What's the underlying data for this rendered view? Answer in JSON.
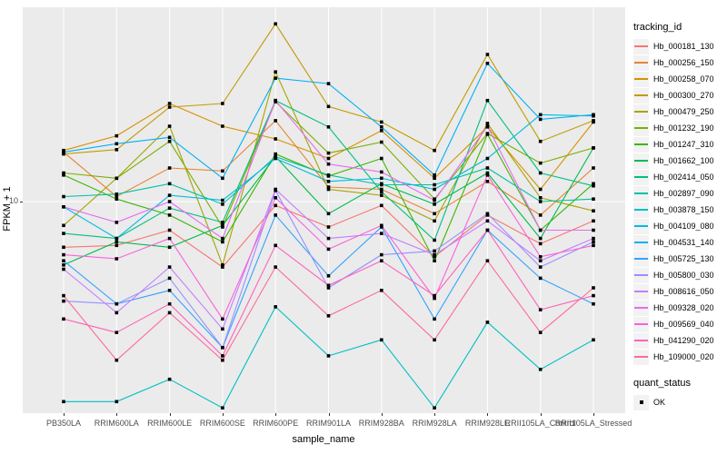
{
  "figure": {
    "panel_bg": "#EBEBEB",
    "grid_color": "#FFFFFF",
    "axis_text_color": "#4D4D4D",
    "point_color": "#000000"
  },
  "y_axis": {
    "title": "FPKM + 1",
    "tick_labels": [
      "10"
    ]
  },
  "x_axis": {
    "title": "sample_name"
  },
  "legend": {
    "tracking_title": "tracking_id",
    "quant_title": "quant_status",
    "quant_ok_label": "OK"
  },
  "chart_data": {
    "type": "line",
    "title": "",
    "xlabel": "sample_name",
    "ylabel": "FPKM + 1",
    "y_scale": "log10",
    "y_break_labeled": 10,
    "ylim": [
      1.9,
      45
    ],
    "grid": true,
    "legend_position": "right",
    "point_shape": "filled-black-square",
    "quant_status": "OK",
    "categories": [
      "PB350LA",
      "RRIM600LA",
      "RRIM600LE",
      "RRIM600SE",
      "RRIM600PE",
      "RRIM901LA",
      "RRIM928BA",
      "RRIM928LA",
      "RRIM928LE",
      "RRII105LA_Control",
      "RRII105LA_Stressed"
    ],
    "series": [
      {
        "name": "Hb_000181_130",
        "color": "#F8766D",
        "values": [
          7.0,
          7.1,
          8.0,
          6.0,
          9.7,
          8.2,
          9.7,
          6.5,
          9.0,
          7.2,
          8.6
        ]
      },
      {
        "name": "Hb_000256_150",
        "color": "#EA8331",
        "values": [
          14.7,
          10.4,
          13.0,
          12.7,
          18.8,
          11.2,
          11.0,
          9.1,
          11.7,
          9.0,
          13.0
        ]
      },
      {
        "name": "Hb_000258_070",
        "color": "#D89000",
        "values": [
          14.9,
          16.7,
          21.5,
          18.0,
          16.3,
          14.0,
          17.4,
          12.0,
          17.9,
          11.0,
          18.6
        ]
      },
      {
        "name": "Hb_000300_270",
        "color": "#C09B00",
        "values": [
          14.5,
          15.0,
          20.9,
          21.5,
          40.0,
          21.0,
          18.6,
          14.9,
          31.5,
          16.0,
          18.8
        ]
      },
      {
        "name": "Hb_000479_250",
        "color": "#A3A500",
        "values": [
          8.3,
          12.0,
          18.0,
          6.1,
          27.5,
          11.0,
          10.5,
          8.6,
          18.4,
          10.3,
          9.3
        ]
      },
      {
        "name": "Hb_001232_190",
        "color": "#7CAE00",
        "values": [
          12.5,
          12.0,
          16.0,
          8.2,
          21.8,
          14.6,
          15.9,
          10.2,
          17.0,
          13.5,
          15.2
        ]
      },
      {
        "name": "Hb_001247_310",
        "color": "#39B600",
        "values": [
          12.3,
          10.2,
          9.0,
          7.3,
          14.5,
          12.2,
          14.0,
          6.3,
          16.9,
          8.0,
          11.5
        ]
      },
      {
        "name": "Hb_001662_100",
        "color": "#00BB4E",
        "values": [
          6.1,
          7.3,
          7.0,
          8.3,
          14.2,
          9.1,
          11.5,
          9.8,
          12.5,
          7.5,
          15.2
        ]
      },
      {
        "name": "Hb_002414_050",
        "color": "#00BF7D",
        "values": [
          7.8,
          7.5,
          9.5,
          8.5,
          22.0,
          17.9,
          10.8,
          7.4,
          22.0,
          12.5,
          11.3
        ]
      },
      {
        "name": "Hb_002897_090",
        "color": "#00C1A3",
        "values": [
          10.4,
          10.6,
          11.5,
          9.8,
          14.2,
          12.3,
          11.4,
          11.4,
          13.0,
          10.0,
          10.2
        ]
      },
      {
        "name": "Hb_003878_150",
        "color": "#00BFC4",
        "values": [
          2.1,
          2.1,
          2.5,
          2.0,
          4.4,
          3.0,
          3.4,
          2.0,
          3.9,
          2.7,
          3.4
        ]
      },
      {
        "name": "Hb_004109_080",
        "color": "#00BAE0",
        "values": [
          9.6,
          7.5,
          10.5,
          10.1,
          14.0,
          11.7,
          12.0,
          11.0,
          14.0,
          19.7,
          19.5
        ]
      },
      {
        "name": "Hb_004531_140",
        "color": "#00B0F6",
        "values": [
          14.7,
          15.7,
          16.5,
          12.0,
          26.2,
          25.1,
          17.9,
          12.3,
          29.4,
          19.0,
          19.7
        ]
      },
      {
        "name": "Hb_005725_130",
        "color": "#35A2FF",
        "values": [
          6.3,
          4.5,
          5.0,
          3.2,
          9.0,
          5.6,
          8.2,
          4.0,
          8.0,
          5.5,
          4.5
        ]
      },
      {
        "name": "Hb_005800_030",
        "color": "#9590FF",
        "values": [
          4.6,
          4.5,
          5.5,
          3.2,
          10.9,
          5.1,
          6.6,
          6.8,
          9.1,
          6.0,
          7.3
        ]
      },
      {
        "name": "Hb_008616_050",
        "color": "#C77CFF",
        "values": [
          5.9,
          4.2,
          6.0,
          3.7,
          11.0,
          7.5,
          7.8,
          6.6,
          8.6,
          6.3,
          7.5
        ]
      },
      {
        "name": "Hb_009328_020",
        "color": "#E76BF3",
        "values": [
          9.6,
          8.5,
          10.0,
          7.5,
          22.0,
          13.4,
          12.6,
          10.1,
          18.0,
          8.0,
          8.0
        ]
      },
      {
        "name": "Hb_009569_040",
        "color": "#FA62DB",
        "values": [
          6.6,
          6.4,
          7.5,
          4.0,
          10.3,
          6.9,
          8.3,
          4.7,
          12.3,
          6.5,
          7.1
        ]
      },
      {
        "name": "Hb_041290_020",
        "color": "#FF62BC",
        "values": [
          4.0,
          3.6,
          4.5,
          3.0,
          7.1,
          5.2,
          6.3,
          4.8,
          8.0,
          4.3,
          4.8
        ]
      },
      {
        "name": "Hb_109000_020",
        "color": "#FF6A98",
        "values": [
          4.8,
          2.9,
          4.2,
          2.9,
          6.0,
          4.1,
          5.0,
          3.4,
          6.3,
          3.6,
          5.1
        ]
      }
    ]
  }
}
